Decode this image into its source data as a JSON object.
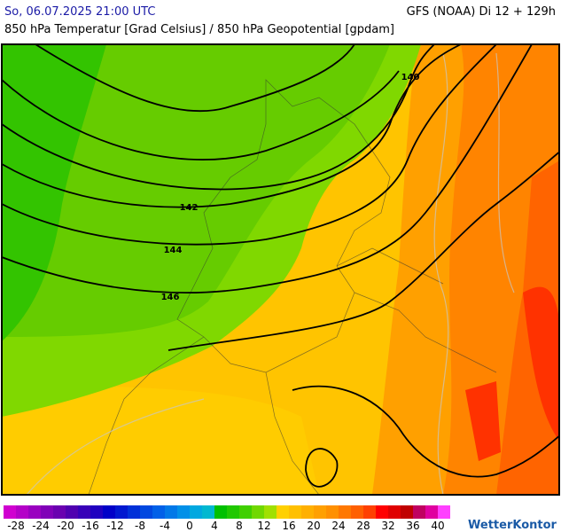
{
  "header": {
    "datetime": "So, 06.07.2025 21:00 UTC",
    "model_run": "GFS (NOAA) Di 12 + 129h",
    "subtitle": "850 hPa Temperatur [Grad Celsius] / 850 hPa Geopotential [gpdam]"
  },
  "map": {
    "contour_labels": [
      "140",
      "142",
      "144",
      "146"
    ]
  },
  "colorbar": {
    "ticks": [
      -28,
      -24,
      -20,
      -16,
      -12,
      -8,
      -4,
      0,
      4,
      8,
      12,
      16,
      20,
      24,
      28,
      32,
      36,
      40
    ],
    "colors": [
      "#d000d0",
      "#b400c8",
      "#9a00c0",
      "#8000b8",
      "#6a00b0",
      "#5000b0",
      "#3800b8",
      "#2000c0",
      "#0000c8",
      "#0018d0",
      "#0030d8",
      "#0048e0",
      "#0060e8",
      "#0078e8",
      "#0090e8",
      "#00a8e0",
      "#00b8d0",
      "#00c000",
      "#20c800",
      "#40d000",
      "#70d800",
      "#a0e000",
      "#ffd000",
      "#ffc000",
      "#ffb000",
      "#ffa000",
      "#ff9000",
      "#ff7800",
      "#ff6000",
      "#ff4000",
      "#ff0000",
      "#e00000",
      "#c00000",
      "#c00060",
      "#e000a0",
      "#ff40ff"
    ]
  },
  "logo": "WetterKontor"
}
